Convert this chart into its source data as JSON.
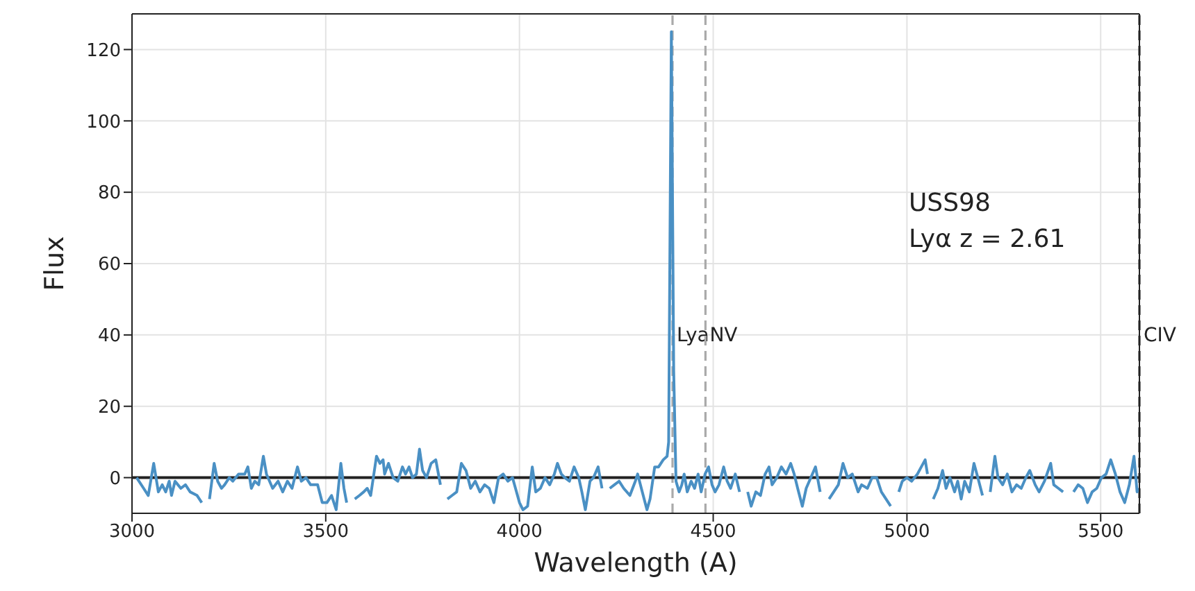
{
  "chart_data": {
    "type": "line",
    "xlabel": "Wavelength (A)",
    "ylabel": "Flux",
    "xlim": [
      3000,
      5600
    ],
    "xticks": [
      3000,
      3500,
      4000,
      4500,
      5000,
      5500
    ],
    "ylim": [
      -10,
      130
    ],
    "yticks": [
      0,
      20,
      40,
      60,
      80,
      100,
      120
    ],
    "grid": true,
    "marker": "none",
    "line_style": "solid",
    "annotations": [
      "USS98",
      "Lyα z = 2.61"
    ],
    "ref_lines": [
      {
        "axis": "x",
        "value": 4395,
        "label": "Lya",
        "color": "#aaaaaa",
        "line_style": "dashed"
      },
      {
        "axis": "x",
        "value": 4480,
        "label": "NV",
        "color": "#aaaaaa",
        "line_style": "dashed"
      },
      {
        "axis": "x",
        "value": 5600,
        "label": "CIV",
        "color": "#333333",
        "line_style": "dashed"
      },
      {
        "axis": "y",
        "value": 0,
        "color": "#222222",
        "line_style": "solid"
      }
    ],
    "series": [
      {
        "color": "#4a90c4",
        "x": [
          3012,
          3030,
          3042,
          3056,
          3068,
          3078,
          3087,
          3096,
          3102,
          3111,
          3126,
          3138,
          3150,
          3168,
          3180,
          3191,
          3200,
          3212,
          3221,
          3231,
          3239,
          3251,
          3260,
          3275,
          3291,
          3299,
          3308,
          3317,
          3327,
          3339,
          3347,
          3363,
          3377,
          3389,
          3401,
          3413,
          3427,
          3437,
          3449,
          3461,
          3479,
          3491,
          3503,
          3515,
          3527,
          3539,
          3547,
          3554,
          3566,
          3575,
          3587,
          3598,
          3607,
          3616,
          3631,
          3640,
          3648,
          3652,
          3662,
          3674,
          3686,
          3698,
          3706,
          3715,
          3724,
          3734,
          3742,
          3750,
          3760,
          3772,
          3784,
          3796,
          3806,
          3814,
          3826,
          3838,
          3850,
          3862,
          3874,
          3886,
          3898,
          3910,
          3922,
          3934,
          3946,
          3958,
          3970,
          3982,
          4000,
          4009,
          4021,
          4033,
          4042,
          4054,
          4066,
          4078,
          4090,
          4098,
          4108,
          4117,
          4129,
          4141,
          4153,
          4161,
          4170,
          4182,
          4191,
          4203,
          4213,
          4225,
          4233,
          4245,
          4257,
          4269,
          4285,
          4299,
          4305,
          4317,
          4329,
          4337,
          4349,
          4359,
          4371,
          4381,
          4385,
          4392,
          4398,
          4404,
          4412,
          4419,
          4425,
          4433,
          4443,
          4452,
          4461,
          4469,
          4479,
          4488,
          4497,
          4505,
          4515,
          4527,
          4536,
          4545,
          4557,
          4568,
          4580,
          4589,
          4598,
          4610,
          4622,
          4634,
          4644,
          4652,
          4664,
          4676,
          4688,
          4700,
          4709,
          4718,
          4730,
          4740,
          4752,
          4764,
          4776,
          4788,
          4799,
          4811,
          4823,
          4835,
          4847,
          4859,
          4874,
          4883,
          4898,
          4910,
          4922,
          4934,
          4946,
          4958,
          4967,
          4979,
          4988,
          5000,
          5012,
          5027,
          5037,
          5047,
          5053,
          5059,
          5068,
          5080,
          5092,
          5101,
          5111,
          5123,
          5131,
          5140,
          5149,
          5161,
          5173,
          5183,
          5195,
          5207,
          5215,
          5227,
          5235,
          5247,
          5259,
          5271,
          5283,
          5295,
          5307,
          5317,
          5331,
          5341,
          5355,
          5371,
          5379,
          5391,
          5403,
          5418,
          5430,
          5442,
          5454,
          5466,
          5478,
          5490,
          5502,
          5514,
          5526,
          5538,
          5550,
          5562,
          5574,
          5586,
          5594,
          5599
        ],
        "values": [
          0,
          -3,
          -5,
          4,
          -4,
          -2,
          -4,
          -1,
          -5,
          -1,
          -3,
          -2,
          -4,
          -5,
          -7,
          null,
          -6,
          4,
          -1,
          -3,
          -2,
          0,
          -1,
          1,
          1,
          3,
          -3,
          -1,
          -2,
          6,
          1,
          -3,
          -1,
          -4,
          -1,
          -3,
          3,
          -1,
          0,
          -2,
          -2,
          -7,
          -7,
          -5,
          -9,
          4,
          -3,
          -7,
          null,
          -6,
          -5,
          -4,
          -3,
          -5,
          6,
          4,
          5,
          1,
          4,
          0,
          -1,
          3,
          1,
          3,
          0,
          1,
          8,
          2,
          0,
          4,
          5,
          -2,
          null,
          -6,
          -5,
          -4,
          4,
          2,
          -3,
          -1,
          -4,
          -2,
          -3,
          -7,
          0,
          1,
          -1,
          0,
          -7,
          -9,
          -8,
          3,
          -4,
          -3,
          0,
          -2,
          1,
          4,
          1,
          0,
          -1,
          3,
          0,
          -4,
          -9,
          -1,
          0,
          3,
          -3,
          null,
          -3,
          -2,
          -1,
          -3,
          -5,
          -1,
          1,
          -4,
          -9,
          -6,
          3,
          3,
          5,
          6,
          10,
          125,
          30,
          -1,
          -4,
          -2,
          1,
          -4,
          -1,
          -3,
          1,
          -4,
          1,
          3,
          -2,
          -4,
          -2,
          3,
          -1,
          -3,
          1,
          -4,
          null,
          -4,
          -8,
          -4,
          -5,
          1,
          3,
          -2,
          0,
          3,
          1,
          4,
          1,
          -3,
          -8,
          -3,
          0,
          3,
          -4,
          null,
          -6,
          -4,
          -2,
          4,
          0,
          1,
          -4,
          -2,
          -3,
          0,
          0,
          -4,
          -6,
          -8,
          null,
          -4,
          -1,
          0,
          -1,
          1,
          3,
          5,
          1,
          null,
          -6,
          -3,
          2,
          -3,
          0,
          -4,
          -1,
          -6,
          -1,
          -4,
          4,
          0,
          -5,
          null,
          -4,
          6,
          0,
          -2,
          1,
          -4,
          -2,
          -3,
          0,
          2,
          -2,
          -4,
          -1,
          4,
          -2,
          -3,
          -4,
          null,
          -4,
          -2,
          -3,
          -7,
          -4,
          -3,
          0,
          1,
          5,
          1,
          -4,
          -7,
          -2,
          6,
          -4,
          -3
        ]
      }
    ]
  }
}
